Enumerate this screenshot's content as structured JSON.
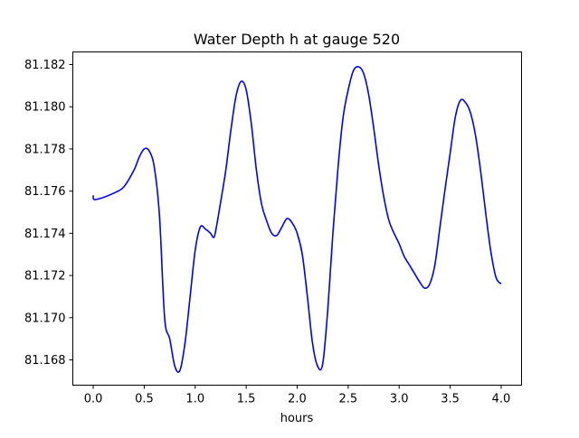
{
  "chart_data": {
    "type": "line",
    "title": "Water Depth h at gauge 520",
    "xlabel": "hours",
    "ylabel": "",
    "xlim": [
      -0.2,
      4.2
    ],
    "ylim": [
      81.1668,
      81.1826
    ],
    "xticks": [
      0.0,
      0.5,
      1.0,
      1.5,
      2.0,
      2.5,
      3.0,
      3.5,
      4.0
    ],
    "xtick_labels": [
      "0.0",
      "0.5",
      "1.0",
      "1.5",
      "2.0",
      "2.5",
      "3.0",
      "3.5",
      "4.0"
    ],
    "yticks": [
      81.168,
      81.17,
      81.172,
      81.174,
      81.176,
      81.178,
      81.18,
      81.182
    ],
    "ytick_labels": [
      "81.168",
      "81.170",
      "81.172",
      "81.174",
      "81.176",
      "81.178",
      "81.180",
      "81.182"
    ],
    "grid": false,
    "series": [
      {
        "color": "#0000ff",
        "x": [
          0.0,
          0.01,
          0.1,
          0.2,
          0.3,
          0.4,
          0.45,
          0.5,
          0.55,
          0.6,
          0.65,
          0.7,
          0.75,
          0.8,
          0.85,
          0.9,
          0.95,
          1.0,
          1.05,
          1.1,
          1.15,
          1.18,
          1.2,
          1.25,
          1.3,
          1.35,
          1.4,
          1.45,
          1.5,
          1.55,
          1.6,
          1.65,
          1.7,
          1.75,
          1.8,
          1.85,
          1.9,
          1.95,
          2.0,
          2.05,
          2.1,
          2.15,
          2.2,
          2.25,
          2.3,
          2.35,
          2.4,
          2.45,
          2.5,
          2.55,
          2.6,
          2.65,
          2.7,
          2.75,
          2.8,
          2.85,
          2.9,
          2.95,
          3.0,
          3.05,
          3.1,
          3.15,
          3.2,
          3.25,
          3.3,
          3.35,
          3.4,
          3.45,
          3.5,
          3.55,
          3.6,
          3.65,
          3.7,
          3.75,
          3.8,
          3.85,
          3.9,
          3.95,
          4.0
        ],
        "y": [
          81.1758,
          81.1756,
          81.1757,
          81.1759,
          81.1762,
          81.177,
          81.1776,
          81.178,
          81.1779,
          81.1771,
          81.1748,
          81.17,
          81.169,
          81.1677,
          81.1675,
          81.1688,
          81.171,
          81.1732,
          81.1743,
          81.1742,
          81.174,
          81.1738,
          81.1741,
          81.1755,
          81.177,
          81.1789,
          81.1805,
          81.1812,
          81.1808,
          81.1792,
          81.177,
          81.1754,
          81.1746,
          81.174,
          81.1739,
          81.1743,
          81.1747,
          81.1745,
          81.174,
          81.173,
          81.171,
          81.1688,
          81.1677,
          81.1678,
          81.1704,
          81.174,
          81.1771,
          81.1795,
          81.1808,
          81.1817,
          81.1819,
          81.1816,
          81.1806,
          81.179,
          81.1772,
          81.1757,
          81.1746,
          81.174,
          81.1735,
          81.1729,
          81.1725,
          81.1721,
          81.1717,
          81.1714,
          81.1716,
          81.1725,
          81.1743,
          81.1761,
          81.1778,
          81.1795,
          81.1803,
          81.1802,
          81.1797,
          81.1786,
          81.1769,
          81.1749,
          81.1731,
          81.1719,
          81.1716
        ]
      }
    ]
  }
}
